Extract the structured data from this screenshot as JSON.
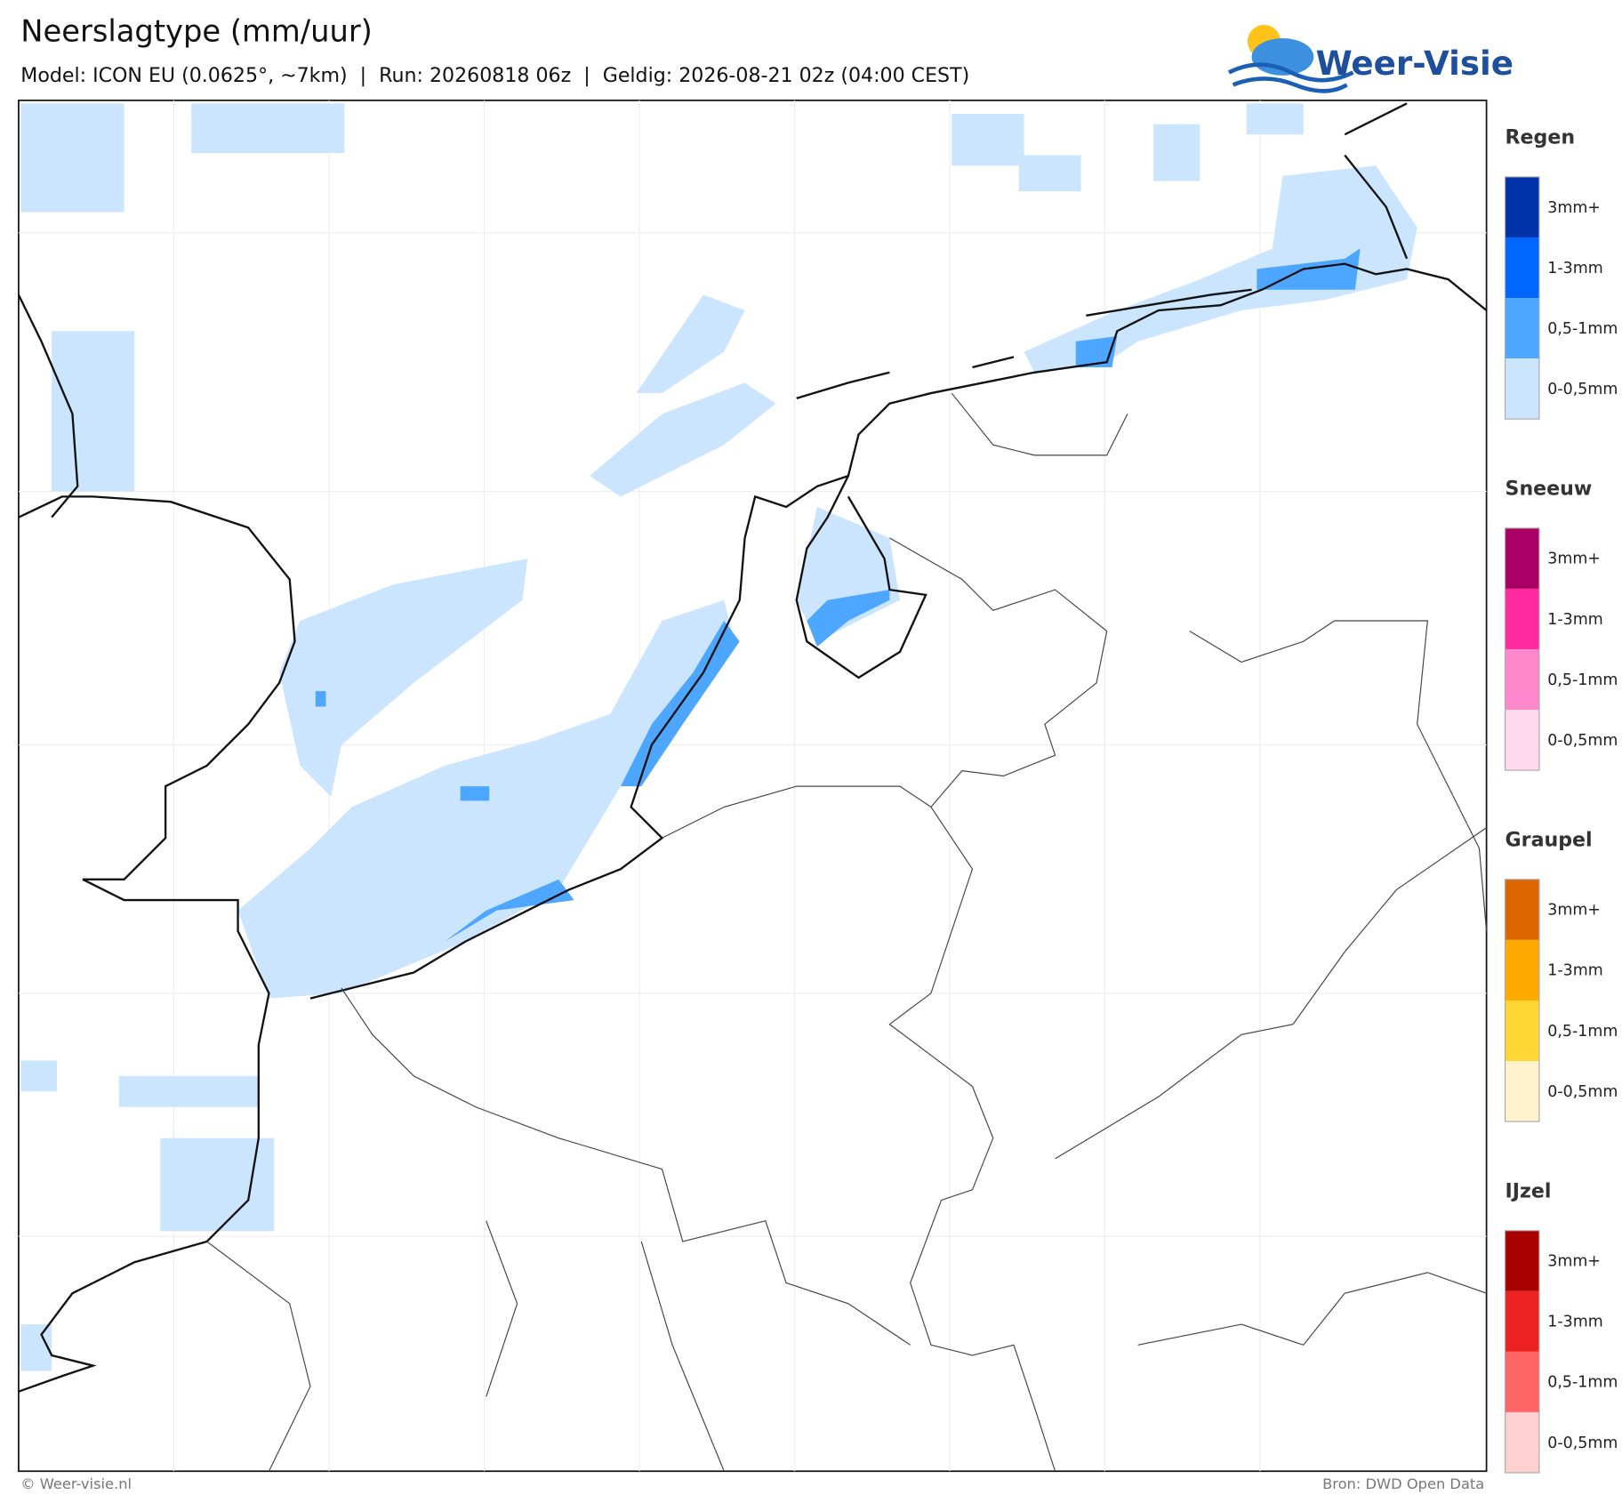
{
  "header": {
    "title": "Neerslagtype (mm/uur)",
    "subtitle": "Model: ICON EU (0.0625°, ~7km)  |  Run: 20260818 06z  |  Geldig: 2026-08-21 02z (04:00 CEST)",
    "logo": "Weer-Visie"
  },
  "legend": [
    {
      "title": "Regen",
      "items": [
        {
          "label": "3mm+",
          "color": "#0033aa"
        },
        {
          "label": "1-3mm",
          "color": "#0066ff"
        },
        {
          "label": "0,5-1mm",
          "color": "#4da6ff"
        },
        {
          "label": "0-0,5mm",
          "color": "#cce5ff"
        }
      ]
    },
    {
      "title": "Sneeuw",
      "items": [
        {
          "label": "3mm+",
          "color": "#aa0066"
        },
        {
          "label": "1-3mm",
          "color": "#ff2aa0"
        },
        {
          "label": "0,5-1mm",
          "color": "#ff88cc"
        },
        {
          "label": "0-0,5mm",
          "color": "#ffd9ee"
        }
      ]
    },
    {
      "title": "Graupel",
      "items": [
        {
          "label": "3mm+",
          "color": "#dd6600"
        },
        {
          "label": "1-3mm",
          "color": "#ffaa00"
        },
        {
          "label": "0,5-1mm",
          "color": "#ffd633"
        },
        {
          "label": "0-0,5mm",
          "color": "#fff2cc"
        }
      ]
    },
    {
      "title": "IJzel",
      "items": [
        {
          "label": "3mm+",
          "color": "#aa0000"
        },
        {
          "label": "1-3mm",
          "color": "#ee2222"
        },
        {
          "label": "0,5-1mm",
          "color": "#ff6666"
        },
        {
          "label": "0-0,5mm",
          "color": "#ffd0d0"
        }
      ]
    }
  ],
  "footer": {
    "left": "© Weer-visie.nl",
    "right": "Bron: DWD Open Data"
  }
}
